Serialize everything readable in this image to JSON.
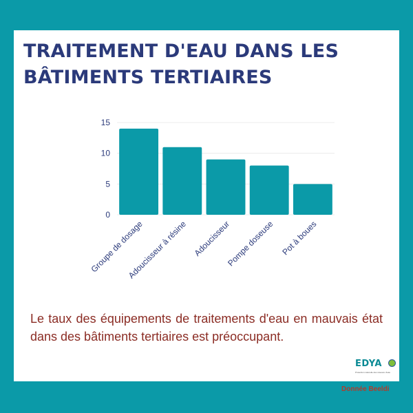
{
  "header": {
    "title_line1": "TRAITEMENT D'EAU DANS LES",
    "title_line2": "BÂTIMENTS TERTIAIRES"
  },
  "chart_data": {
    "type": "bar",
    "categories": [
      "Groupe de dosage",
      "Adoucisseur à résine",
      "Adoucisseur",
      "Pompe doseuse",
      "Pot à boues"
    ],
    "values": [
      14,
      11,
      9,
      8,
      5
    ],
    "yticks": [
      "0",
      "5",
      "10",
      "15"
    ],
    "ylim": [
      0,
      15
    ],
    "grid": true,
    "title": "",
    "xlabel": "",
    "ylabel": ""
  },
  "description": "Le taux des équipements de traitements d'eau en mauvais état dans des bâtiments tertiaires est préoccupant.",
  "logo": {
    "name": "EDYA",
    "tagline": "Protection naturelle des réseaux d'eau"
  },
  "source": "Donnée Beeldi",
  "colors": {
    "background": "#0b9aa8",
    "bar": "#0b9aa8",
    "title": "#2b3a7a",
    "body_text": "#8b2c24"
  }
}
